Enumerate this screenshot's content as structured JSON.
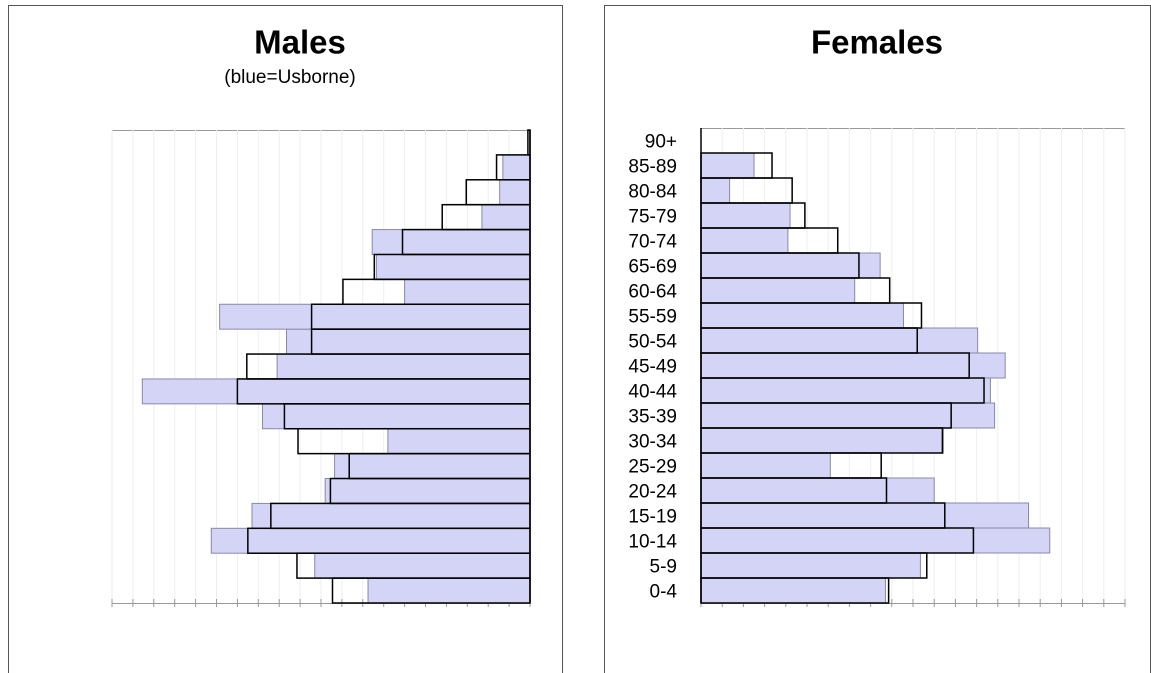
{
  "chart_data": [
    {
      "type": "bar",
      "title": "Males",
      "subtitle": "(blue=Usborne)",
      "xlim": [
        0,
        40
      ],
      "xticks": [
        0,
        2,
        4,
        6,
        8,
        10,
        12,
        14,
        16,
        18,
        20,
        22,
        24,
        26,
        28,
        30,
        32,
        34,
        36,
        38,
        40
      ],
      "grid": true,
      "series": [
        {
          "color": "#d4d4f7",
          "values": [
            15.5,
            20.6,
            30.5,
            26.6,
            19.6,
            18.7,
            13.6,
            25.6,
            37.1,
            24.2,
            23.3,
            29.7,
            12.0,
            14.7,
            15.1,
            4.6,
            2.9,
            2.6,
            0
          ]
        },
        {
          "color": "#000000",
          "values": [
            18.9,
            22.3,
            27.0,
            24.8,
            19.1,
            17.3,
            22.2,
            23.5,
            28.0,
            27.1,
            20.9,
            20.9,
            17.9,
            14.9,
            12.2,
            8.4,
            6.1,
            3.2,
            0.2
          ]
        }
      ]
    },
    {
      "type": "bar",
      "title": "Females",
      "categories": [
        "0-4",
        "5-9",
        "10-14",
        "15-19",
        "20-24",
        "25-29",
        "30-34",
        "35-39",
        "40-44",
        "45-49",
        "50-54",
        "55-59",
        "60-64",
        "65-69",
        "70-74",
        "75-79",
        "80-84",
        "85-89",
        "90+"
      ],
      "xlim": [
        0,
        40
      ],
      "xticks": [
        0,
        2,
        4,
        6,
        8,
        10,
        12,
        14,
        16,
        18,
        20,
        22,
        24,
        26,
        28,
        30,
        32,
        34,
        36,
        38,
        40
      ],
      "grid": true,
      "series": [
        {
          "color": "#d4d4f7",
          "values": [
            17.4,
            20.7,
            32.9,
            30.9,
            22.0,
            12.2,
            22.7,
            27.7,
            27.3,
            28.7,
            26.1,
            19.1,
            14.5,
            16.9,
            8.2,
            8.4,
            2.7,
            5.0,
            0
          ]
        },
        {
          "color": "#000000",
          "values": [
            17.7,
            21.3,
            25.7,
            23.0,
            17.5,
            17.0,
            22.8,
            23.6,
            26.7,
            25.3,
            20.4,
            20.8,
            17.8,
            14.9,
            12.9,
            9.8,
            8.6,
            6.7,
            0
          ]
        }
      ]
    }
  ]
}
